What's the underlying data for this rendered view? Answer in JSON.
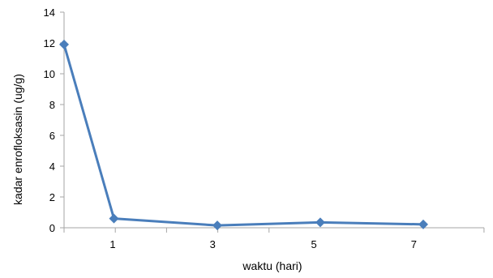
{
  "chart_data": {
    "type": "line",
    "x": [
      0,
      1,
      3,
      5,
      7
    ],
    "x_tick_labels": [
      "1",
      "3",
      "5",
      "7"
    ],
    "xlabel": "waktu (hari)",
    "ylabel": "kadar  enrofloksasin (ug/g)",
    "ylim": [
      0,
      14
    ],
    "yticks": [
      0,
      2,
      4,
      6,
      8,
      10,
      12,
      14
    ],
    "grid": false,
    "legend": "none",
    "series": [
      {
        "values": [
          11.9,
          0.6,
          0.15,
          0.35,
          0.22
        ],
        "color": "#4a7ebb",
        "marker": "diamond"
      }
    ]
  }
}
